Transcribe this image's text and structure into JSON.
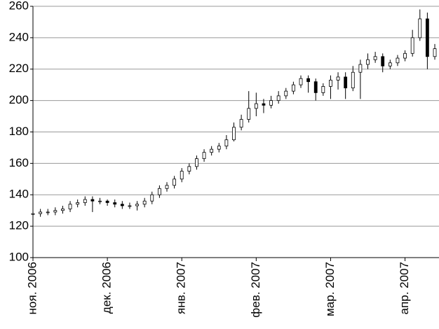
{
  "chart_data": {
    "type": "candlestick",
    "categories": [
      "ноя. 2006",
      null,
      null,
      null,
      null,
      null,
      null,
      null,
      null,
      null,
      "дек. 2006",
      null,
      null,
      null,
      null,
      null,
      null,
      null,
      null,
      null,
      "янв. 2007",
      null,
      null,
      null,
      null,
      null,
      null,
      null,
      null,
      null,
      "фев. 2007",
      null,
      null,
      null,
      null,
      null,
      null,
      null,
      null,
      null,
      "мар. 2007",
      null,
      null,
      null,
      null,
      null,
      null,
      null,
      null,
      null,
      "апр. 2007",
      null,
      null,
      null,
      null
    ],
    "series": [
      {
        "open": [
          127.5,
          128,
          129,
          129,
          130,
          131,
          134,
          135,
          137,
          136,
          136,
          135,
          134,
          133,
          133,
          134,
          136,
          140,
          144,
          146,
          150,
          155,
          158,
          163,
          167,
          169,
          171,
          175,
          183,
          188,
          195,
          198,
          197,
          200,
          203,
          206,
          210,
          214,
          212,
          205,
          209,
          213,
          215,
          208,
          218,
          223,
          226,
          228,
          222,
          224,
          227,
          230,
          240,
          252,
          228
        ],
        "high": [
          130,
          131,
          131,
          132,
          133,
          136,
          137,
          139,
          139,
          138,
          137,
          137,
          136,
          135,
          136,
          138,
          142,
          146,
          148,
          152,
          157,
          160,
          165,
          169,
          171,
          173,
          178,
          186,
          191,
          206,
          205,
          201,
          203,
          206,
          208,
          212,
          216,
          216,
          214,
          211,
          216,
          218,
          218,
          222,
          226,
          230,
          231,
          230,
          226,
          229,
          232,
          245,
          258,
          256,
          236
        ],
        "low": [
          126,
          126,
          127,
          127,
          128,
          129,
          132,
          133,
          129,
          134,
          133,
          132,
          131,
          131,
          130,
          132,
          134,
          138,
          142,
          144,
          148,
          153,
          156,
          161,
          165,
          167,
          169,
          174,
          181,
          186,
          190,
          192,
          195,
          198,
          201,
          204,
          208,
          205,
          200,
          203,
          201,
          207,
          201,
          206,
          201,
          220,
          224,
          218,
          220,
          222,
          225,
          228,
          238,
          220,
          226
        ],
        "close": [
          128,
          129,
          129,
          130,
          131,
          134,
          135,
          137,
          136,
          136,
          135,
          134,
          133,
          133,
          134,
          136,
          140,
          144,
          146,
          150,
          155,
          158,
          163,
          167,
          169,
          171,
          175,
          183,
          188,
          195,
          198,
          197,
          200,
          203,
          206,
          210,
          214,
          212,
          205,
          209,
          213,
          215,
          208,
          218,
          223,
          226,
          228,
          222,
          224,
          227,
          230,
          240,
          252,
          228,
          233
        ],
        "up_color": "#ffffff",
        "down_color": "#000000"
      }
    ],
    "ylim": [
      100,
      260
    ],
    "yticks": [
      100,
      120,
      140,
      160,
      180,
      200,
      220,
      240,
      260
    ],
    "grid": true
  }
}
